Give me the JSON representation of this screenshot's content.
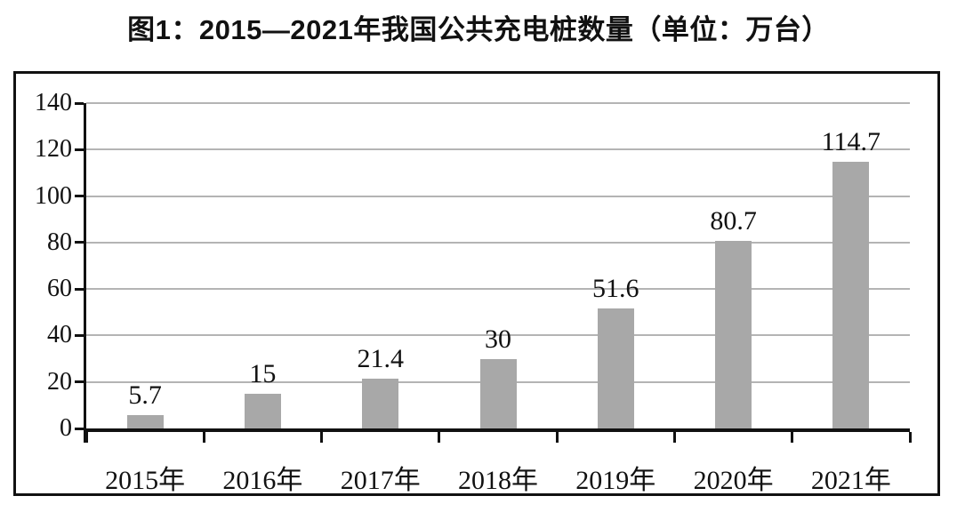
{
  "figure": {
    "title": "图1：2015—2021年我国公共充电桩数量（单位：万台）"
  },
  "chart_data": {
    "type": "bar",
    "title": "图1：2015—2021年我国公共充电桩数量（单位：万台）",
    "categories": [
      "2015年",
      "2016年",
      "2017年",
      "2018年",
      "2019年",
      "2020年",
      "2021年"
    ],
    "values": [
      5.7,
      15,
      21.4,
      30,
      51.6,
      80.7,
      114.7
    ],
    "value_labels": [
      "5.7",
      "15",
      "21.4",
      "30",
      "51.6",
      "80.7",
      "114.7"
    ],
    "xlabel": "",
    "ylabel": "",
    "unit": "万台",
    "ylim": [
      0,
      140
    ],
    "yticks": [
      0,
      20,
      40,
      60,
      80,
      100,
      120,
      140
    ],
    "grid": true,
    "legend": "none",
    "colors": {
      "bar": "#a8a8a8",
      "gridline": "#b4b4b4",
      "axis": "#111111",
      "text": "#111111",
      "background": "#ffffff"
    }
  }
}
